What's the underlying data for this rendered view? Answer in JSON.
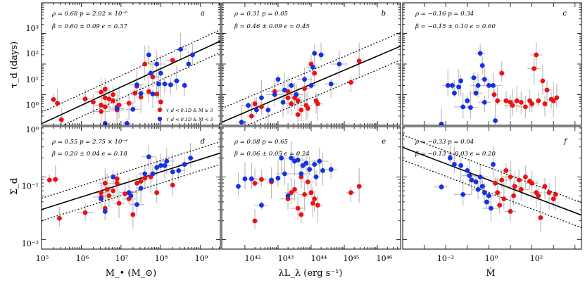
{
  "chart_data": [
    {
      "id": "a",
      "type": "scatter",
      "panel_label": "a",
      "stat_line1": "ρ = 0.68   p = 2.02 × 10⁻⁶",
      "stat_line2": "β = 0.60 ± 0.09   ϵ = 0.37",
      "xlim": [
        5,
        9.5
      ],
      "ylim": [
        0,
        4
      ],
      "fit": {
        "slope": 0.6,
        "intercept": -2.95,
        "band": 0.37
      },
      "red": [
        [
          5.3,
          0.84
        ],
        [
          5.4,
          0.72
        ],
        [
          5.5,
          0.18
        ],
        [
          6.1,
          0.86
        ],
        [
          6.6,
          0.6
        ],
        [
          6.5,
          0.66
        ],
        [
          6.5,
          1.08
        ],
        [
          6.6,
          1.18
        ],
        [
          6.7,
          0.86
        ],
        [
          6.8,
          0.8
        ],
        [
          6.9,
          0.6
        ],
        [
          6.9,
          0.5
        ],
        [
          6.6,
          0.9
        ],
        [
          6.8,
          1.0
        ],
        [
          6.95,
          0.66
        ],
        [
          6.3,
          0.76
        ],
        [
          7.2,
          0.72
        ],
        [
          7.35,
          1.05
        ],
        [
          7.6,
          2.0
        ],
        [
          7.7,
          1.1
        ],
        [
          7.4,
          1.28
        ],
        [
          7.8,
          1.58
        ],
        [
          8.3,
          2.12
        ],
        [
          7.9,
          1.02
        ],
        [
          8.0,
          0.76
        ],
        [
          7.5,
          0.92
        ],
        [
          6.5,
          0.45
        ]
      ],
      "blue": [
        [
          6.6,
          0.06
        ],
        [
          6.9,
          0.54
        ],
        [
          7.15,
          0.06
        ],
        [
          7.3,
          0.52
        ],
        [
          7.4,
          1.32
        ],
        [
          7.5,
          1.04
        ],
        [
          7.7,
          2.3
        ],
        [
          7.75,
          1.7
        ],
        [
          7.8,
          1.02
        ],
        [
          7.9,
          2.0
        ],
        [
          8.0,
          1.7
        ],
        [
          8.1,
          1.35
        ],
        [
          8.25,
          1.32
        ],
        [
          8.4,
          1.45
        ],
        [
          8.5,
          2.48
        ],
        [
          8.7,
          2.0
        ],
        [
          8.6,
          1.3
        ],
        [
          8.8,
          2.3
        ],
        [
          7.95,
          1.35
        ]
      ],
      "legend_red": "τ_d < 0.1D & Ṁ ≥ 3",
      "legend_blue": "τ_d < 0.1D & Ṁ < 3",
      "ylabel": "τ_d (days)",
      "yticks": [
        "10⁰",
        "10¹",
        "10²",
        "10³"
      ],
      "ytick_bottom": "10⁰"
    },
    {
      "id": "b",
      "type": "scatter",
      "panel_label": "b",
      "stat_line1": "ρ = 0.31   p = 0.05",
      "stat_line2": "β = 0.46 ± 0.09   ϵ = 0.45",
      "xlim": [
        41.3,
        46.7
      ],
      "ylim": [
        0,
        4
      ],
      "fit": {
        "slope": 0.46,
        "intercept": -18.9,
        "band": 0.45
      },
      "red": [
        [
          42.3,
          0.7
        ],
        [
          42.2,
          0.3
        ],
        [
          42.5,
          0.6
        ],
        [
          42.9,
          1.1
        ],
        [
          43.3,
          0.9
        ],
        [
          43.4,
          0.7
        ],
        [
          43.5,
          0.9
        ],
        [
          43.55,
          1.0
        ],
        [
          43.6,
          0.8
        ],
        [
          43.7,
          0.5
        ],
        [
          43.6,
          0.35
        ],
        [
          43.8,
          1.2
        ],
        [
          43.85,
          0.65
        ],
        [
          44.0,
          2.0
        ],
        [
          44.1,
          1.7
        ],
        [
          44.15,
          0.8
        ],
        [
          44.2,
          0.7
        ],
        [
          45.2,
          1.4
        ],
        [
          45.45,
          2.1
        ],
        [
          43.3,
          1.1
        ],
        [
          43.9,
          0.55
        ]
      ],
      "blue": [
        [
          41.9,
          0.1
        ],
        [
          42.1,
          0.65
        ],
        [
          42.35,
          0.5
        ],
        [
          42.5,
          0.9
        ],
        [
          42.7,
          0.5
        ],
        [
          42.9,
          1.0
        ],
        [
          43.0,
          1.5
        ],
        [
          43.2,
          1.15
        ],
        [
          43.4,
          1.3
        ],
        [
          43.55,
          1.0
        ],
        [
          43.8,
          1.5
        ],
        [
          44.0,
          1.3
        ],
        [
          44.1,
          2.35
        ],
        [
          44.3,
          2.3
        ],
        [
          44.6,
          1.35
        ],
        [
          44.85,
          2.0
        ],
        [
          43.15,
          0.75
        ],
        [
          44.05,
          1.9
        ]
      ],
      "xticks": [
        "10⁴²",
        "10⁴³",
        "10⁴⁴",
        "10⁴⁵",
        "10⁴⁶"
      ]
    },
    {
      "id": "c",
      "type": "scatter",
      "panel_label": "c",
      "stat_line1": "ρ = −0.16   p = 0.34",
      "stat_line2": "β = −0.15 ± 0.10   ϵ = 0.60",
      "xlim": [
        -4,
        4.3
      ],
      "ylim": [
        0,
        4
      ],
      "red": [
        [
          0.25,
          1.0
        ],
        [
          0.4,
          0.8
        ],
        [
          0.6,
          1.7
        ],
        [
          0.8,
          0.8
        ],
        [
          1.0,
          0.75
        ],
        [
          1.1,
          0.65
        ],
        [
          1.3,
          0.8
        ],
        [
          1.5,
          0.75
        ],
        [
          1.7,
          0.6
        ],
        [
          1.9,
          0.8
        ],
        [
          2.0,
          0.7
        ],
        [
          2.1,
          1.85
        ],
        [
          2.2,
          2.3
        ],
        [
          2.3,
          0.8
        ],
        [
          2.5,
          1.45
        ],
        [
          2.6,
          0.7
        ],
        [
          2.7,
          1.15
        ],
        [
          2.9,
          0.85
        ],
        [
          3.0,
          0.8
        ],
        [
          3.15,
          0.9
        ]
      ],
      "blue": [
        [
          -2.2,
          0.04
        ],
        [
          -1.9,
          1.3
        ],
        [
          -1.7,
          1.3
        ],
        [
          -1.6,
          1.05
        ],
        [
          -1.4,
          1.25
        ],
        [
          -1.3,
          1.45
        ],
        [
          -1.2,
          0.6
        ],
        [
          -1.0,
          0.8
        ],
        [
          -0.85,
          0.58
        ],
        [
          -0.7,
          1.55
        ],
        [
          -0.6,
          1.05
        ],
        [
          -0.5,
          1.3
        ],
        [
          -0.4,
          2.35
        ],
        [
          -0.3,
          1.95
        ],
        [
          -0.2,
          1.5
        ],
        [
          0.0,
          1.3
        ],
        [
          0.2,
          1.3
        ],
        [
          0.3,
          0.15
        ],
        [
          -0.2,
          0.75
        ]
      ]
    },
    {
      "id": "d",
      "type": "scatter",
      "panel_label": "d",
      "stat_line1": "ρ = 0.55   p = 2.75 × 10⁻⁴",
      "stat_line2": "β = 0.20 ± 0.04   ϵ = 0.18",
      "xlim": [
        5,
        9.5
      ],
      "ylim": [
        -2.15,
        -0.2
      ],
      "fit": {
        "slope": 0.2,
        "intercept": -2.52,
        "band": 0.18
      },
      "red": [
        [
          5.2,
          -1.05
        ],
        [
          5.35,
          -1.04
        ],
        [
          5.45,
          -1.66
        ],
        [
          6.1,
          -1.57
        ],
        [
          6.5,
          -1.25
        ],
        [
          6.5,
          -1.32
        ],
        [
          6.6,
          -1.1
        ],
        [
          6.6,
          -1.5
        ],
        [
          6.7,
          -1.3
        ],
        [
          6.8,
          -1.22
        ],
        [
          6.9,
          -1.03
        ],
        [
          6.9,
          -1.1
        ],
        [
          6.95,
          -1.42
        ],
        [
          7.1,
          -1.27
        ],
        [
          7.3,
          -1.6
        ],
        [
          7.4,
          -1.1
        ],
        [
          7.5,
          -1.07
        ],
        [
          7.6,
          -1.02
        ],
        [
          7.75,
          -1.0
        ],
        [
          7.9,
          -1.25
        ],
        [
          8.3,
          -1.13
        ],
        [
          6.65,
          -1.2
        ],
        [
          7.2,
          -1.35
        ]
      ],
      "blue": [
        [
          6.5,
          -1.35
        ],
        [
          6.6,
          -1.55
        ],
        [
          6.8,
          -1.0
        ],
        [
          7.2,
          -1.25
        ],
        [
          7.25,
          -1.3
        ],
        [
          7.4,
          -1.44
        ],
        [
          7.5,
          -1.18
        ],
        [
          7.6,
          -0.95
        ],
        [
          7.7,
          -0.68
        ],
        [
          7.8,
          -0.95
        ],
        [
          7.9,
          -0.85
        ],
        [
          8.0,
          -0.82
        ],
        [
          8.1,
          -0.82
        ],
        [
          8.15,
          -0.75
        ],
        [
          8.3,
          -0.92
        ],
        [
          8.45,
          -0.9
        ],
        [
          8.6,
          -0.8
        ],
        [
          8.75,
          -0.7
        ]
      ],
      "xlabel": "M_• (M_⊙)",
      "xticks": [
        "10⁵",
        "10⁶",
        "10⁷",
        "10⁸",
        "10⁹"
      ],
      "ylabel": "Σ_d",
      "yticks": [
        "10⁻²",
        "10⁻¹"
      ]
    },
    {
      "id": "e",
      "type": "scatter",
      "panel_label": "e",
      "stat_line1": "ρ = 0.08   p = 0.65",
      "stat_line2": "β = 0.06 ± 0.05   ϵ = 0.24",
      "xlim": [
        41.3,
        46.7
      ],
      "ylim": [
        -2.15,
        -0.2
      ],
      "red": [
        [
          42.2,
          -1.03
        ],
        [
          42.3,
          -1.1
        ],
        [
          42.3,
          -1.7
        ],
        [
          42.5,
          -1.04
        ],
        [
          42.8,
          -1.08
        ],
        [
          43.3,
          -1.35
        ],
        [
          43.4,
          -1.25
        ],
        [
          43.5,
          -1.2
        ],
        [
          43.6,
          -1.5
        ],
        [
          43.7,
          -1.0
        ],
        [
          43.7,
          -1.6
        ],
        [
          43.8,
          -1.28
        ],
        [
          43.9,
          -1.08
        ],
        [
          44.0,
          -1.25
        ],
        [
          44.05,
          -1.42
        ],
        [
          44.1,
          -1.35
        ],
        [
          44.2,
          -1.45
        ],
        [
          45.2,
          -1.25
        ],
        [
          45.45,
          -1.15
        ]
      ],
      "blue": [
        [
          41.8,
          -1.15
        ],
        [
          42.0,
          -1.03
        ],
        [
          42.2,
          -1.03
        ],
        [
          42.5,
          -1.45
        ],
        [
          42.8,
          -1.05
        ],
        [
          43.0,
          -1.02
        ],
        [
          43.1,
          -0.7
        ],
        [
          43.2,
          -0.95
        ],
        [
          43.3,
          -1.3
        ],
        [
          43.4,
          -0.7
        ],
        [
          43.5,
          -0.75
        ],
        [
          43.6,
          -0.73
        ],
        [
          43.7,
          -0.95
        ],
        [
          43.75,
          -0.82
        ],
        [
          43.85,
          -0.78
        ],
        [
          43.95,
          -0.88
        ],
        [
          44.1,
          -0.8
        ],
        [
          44.25,
          -0.75
        ],
        [
          44.35,
          -0.9
        ],
        [
          44.6,
          -0.88
        ],
        [
          44.15,
          -1.0
        ]
      ],
      "xlabel": "λL_λ (erg s⁻¹)",
      "xticks": [
        "10⁴²",
        "10⁴³",
        "10⁴⁴",
        "10⁴⁵",
        "10⁴⁶"
      ]
    },
    {
      "id": "f",
      "type": "scatter",
      "panel_label": "f",
      "stat_line1": "ρ = −0.33   p = 0.04",
      "stat_line2": "β = −0.13 ± 0.03   ϵ = 0.20",
      "xlim": [
        -4,
        4.3
      ],
      "ylim": [
        -2.15,
        -0.2
      ],
      "fit": {
        "slope": -0.13,
        "intercept": -1.05,
        "band": 0.2
      },
      "red": [
        [
          0.3,
          -1.1
        ],
        [
          0.4,
          -1.25
        ],
        [
          0.5,
          -1.45
        ],
        [
          0.6,
          -1.05
        ],
        [
          0.8,
          -0.9
        ],
        [
          1.0,
          -1.0
        ],
        [
          1.2,
          -1.15
        ],
        [
          1.4,
          -1.05
        ],
        [
          1.5,
          -1.2
        ],
        [
          1.7,
          -1.0
        ],
        [
          1.9,
          -1.07
        ],
        [
          2.0,
          -1.1
        ],
        [
          2.2,
          -1.25
        ],
        [
          2.3,
          -1.3
        ],
        [
          2.4,
          -1.65
        ],
        [
          2.6,
          -1.15
        ],
        [
          2.8,
          -1.25
        ],
        [
          3.0,
          -1.35
        ],
        [
          3.1,
          -1.28
        ],
        [
          1.15,
          -1.3
        ],
        [
          0.7,
          -1.35
        ],
        [
          1.0,
          -1.55
        ]
      ],
      "blue": [
        [
          -2.2,
          -1.16
        ],
        [
          -1.8,
          -0.7
        ],
        [
          -1.6,
          -0.8
        ],
        [
          -1.3,
          -0.82
        ],
        [
          -1.2,
          -1.28
        ],
        [
          -1.0,
          -0.9
        ],
        [
          -0.9,
          -0.98
        ],
        [
          -0.8,
          -1.05
        ],
        [
          -0.6,
          -1.08
        ],
        [
          -0.4,
          -1.0
        ],
        [
          -0.3,
          -1.15
        ],
        [
          -0.2,
          -1.25
        ],
        [
          -0.1,
          -1.4
        ],
        [
          0.0,
          -1.3
        ],
        [
          0.1,
          -1.5
        ],
        [
          0.2,
          -0.8
        ],
        [
          -0.5,
          -1.2
        ]
      ],
      "xlabel": "Ṁ",
      "xticks": [
        "10⁻²",
        "10⁰",
        "10²"
      ]
    }
  ],
  "colors": {
    "red": "#ee1111",
    "blue": "#1530e8",
    "errorbar": "#bdbdbd",
    "line": "#000000"
  }
}
